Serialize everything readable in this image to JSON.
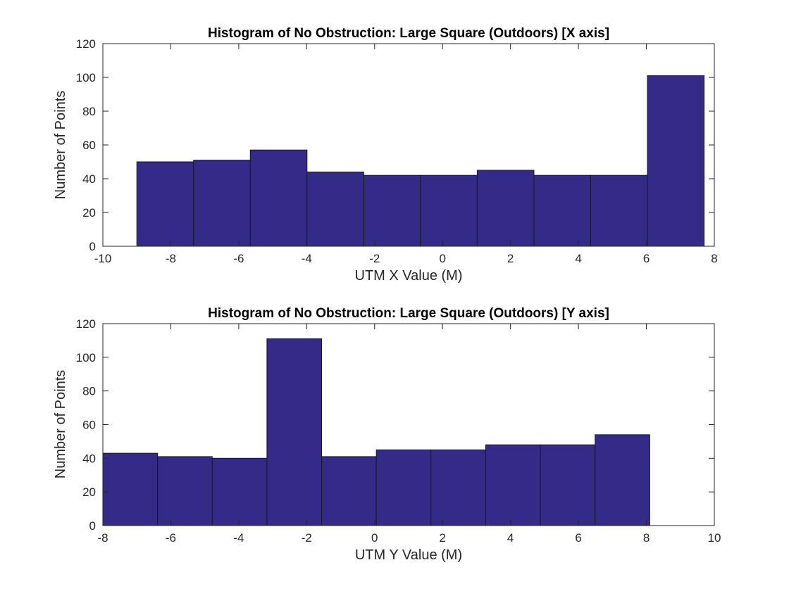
{
  "chart_data": [
    {
      "type": "bar",
      "title": "Histogram of No Obstruction: Large Square (Outdoors) [X axis]",
      "xlabel": "UTM X Value (M)",
      "ylabel": "Number of Points",
      "xlim": [
        -10,
        8
      ],
      "ylim": [
        0,
        120
      ],
      "xticks": [
        -10,
        -8,
        -6,
        -4,
        -2,
        0,
        2,
        4,
        6,
        8
      ],
      "xtick_labels": [
        "-10",
        "-8",
        "-6",
        "-4",
        "-2",
        "0",
        "2",
        "4",
        "6",
        "8"
      ],
      "yticks": [
        0,
        20,
        40,
        60,
        80,
        100,
        120
      ],
      "ytick_labels": [
        "0",
        "20",
        "40",
        "60",
        "80",
        "100",
        "120"
      ],
      "bin_edges": [
        -9.0,
        -7.33,
        -5.66,
        -3.99,
        -2.32,
        -0.65,
        1.02,
        2.69,
        4.36,
        6.03,
        7.7
      ],
      "values": [
        50,
        51,
        57,
        44,
        42,
        42,
        45,
        42,
        42,
        101
      ],
      "bar_color": "#352a87",
      "edge_color": "#1a1a1a",
      "grid": false,
      "legend": "none"
    },
    {
      "type": "bar",
      "title": "Histogram of No Obstruction: Large Square (Outdoors) [Y axis]",
      "xlabel": "UTM Y Value (M)",
      "ylabel": "Number of Points",
      "xlim": [
        -8,
        10
      ],
      "ylim": [
        0,
        120
      ],
      "xticks": [
        -8,
        -6,
        -4,
        -2,
        0,
        2,
        4,
        6,
        8,
        10
      ],
      "xtick_labels": [
        "-8",
        "-6",
        "-4",
        "-2",
        "0",
        "2",
        "4",
        "6",
        "8",
        "10"
      ],
      "yticks": [
        0,
        20,
        40,
        60,
        80,
        100,
        120
      ],
      "ytick_labels": [
        "0",
        "20",
        "40",
        "60",
        "80",
        "100",
        "120"
      ],
      "bin_edges": [
        -8.0,
        -6.39,
        -4.78,
        -3.17,
        -1.56,
        0.05,
        1.66,
        3.27,
        4.88,
        6.49,
        8.1
      ],
      "values": [
        43,
        41,
        40,
        111,
        41,
        45,
        45,
        48,
        48,
        54
      ],
      "bar_color": "#352a87",
      "edge_color": "#1a1a1a",
      "grid": false,
      "legend": "none"
    }
  ]
}
